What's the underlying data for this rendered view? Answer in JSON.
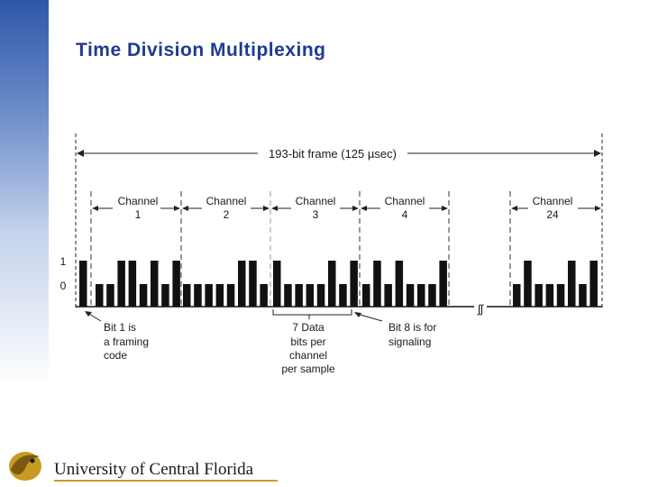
{
  "slide": {
    "title": "Time Division Multiplexing"
  },
  "diagram": {
    "frame_label": "193-bit frame  (125 µsec)",
    "level_one": "1",
    "level_zero": "0",
    "channels": [
      {
        "name": "Channel",
        "number": "1"
      },
      {
        "name": "Channel",
        "number": "2"
      },
      {
        "name": "Channel",
        "number": "3"
      },
      {
        "name": "Channel",
        "number": "4"
      },
      {
        "name": "Channel",
        "number": "24"
      }
    ],
    "annotations": {
      "framing": [
        "Bit 1 is",
        "a framing",
        "code"
      ],
      "data": [
        "7 Data",
        "bits per",
        "channel",
        "per sample"
      ],
      "signaling": [
        "Bit 8 is for",
        "signaling"
      ]
    },
    "bits": {
      "framing_bit": 1,
      "channels": [
        [
          0,
          0,
          1,
          1,
          0,
          1,
          0,
          1
        ],
        [
          0,
          0,
          0,
          0,
          0,
          1,
          1,
          0
        ],
        [
          1,
          0,
          0,
          0,
          0,
          1,
          0,
          1
        ],
        [
          0,
          1,
          0,
          1,
          0,
          0,
          0,
          1
        ],
        [
          0,
          1,
          0,
          0,
          0,
          1,
          0,
          1
        ]
      ]
    }
  },
  "footer": {
    "logo_text": "University of Central Florida"
  },
  "colors": {
    "title": "#1f3b8f",
    "bars": "#111111",
    "sidebar_top": "#2f57a8"
  }
}
